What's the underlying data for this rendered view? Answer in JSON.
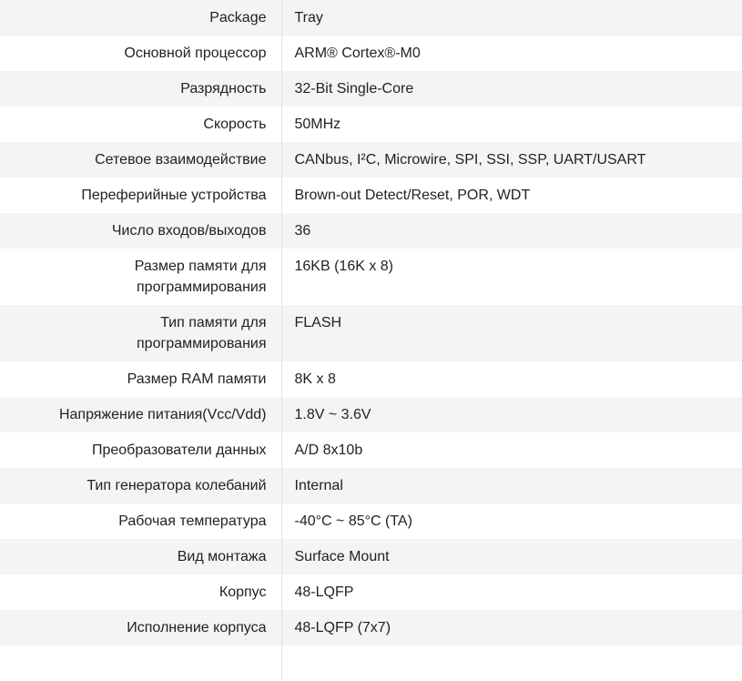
{
  "specs": [
    {
      "label": "Package",
      "value": "Tray"
    },
    {
      "label": "Основной процессор",
      "value": "ARM® Cortex®-M0"
    },
    {
      "label": "Разрядность",
      "value": "32-Bit Single-Core"
    },
    {
      "label": "Скорость",
      "value": "50MHz"
    },
    {
      "label": "Сетевое взаимодействие",
      "value": "CANbus, I²C, Microwire, SPI, SSI, SSP, UART/USART"
    },
    {
      "label": "Переферийные устройства",
      "value": "Brown-out Detect/Reset, POR, WDT"
    },
    {
      "label": "Число входов/выходов",
      "value": "36"
    },
    {
      "label": "Размер памяти для программирования",
      "value": "16KB (16K x 8)"
    },
    {
      "label": "Тип памяти для программирования",
      "value": "FLASH"
    },
    {
      "label": "Размер RAM памяти",
      "value": "8K x 8"
    },
    {
      "label": "Напряжение питания(Vcc/Vdd)",
      "value": "1.8V ~ 3.6V"
    },
    {
      "label": "Преобразователи данных",
      "value": "A/D 8x10b"
    },
    {
      "label": "Тип генератора колебаний",
      "value": "Internal"
    },
    {
      "label": "Рабочая температура",
      "value": "-40°C ~ 85°C (TA)"
    },
    {
      "label": "Вид монтажа",
      "value": "Surface Mount"
    },
    {
      "label": "Корпус",
      "value": "48-LQFP"
    },
    {
      "label": "Исполнение корпуса",
      "value": "48-LQFP (7x7)"
    }
  ]
}
